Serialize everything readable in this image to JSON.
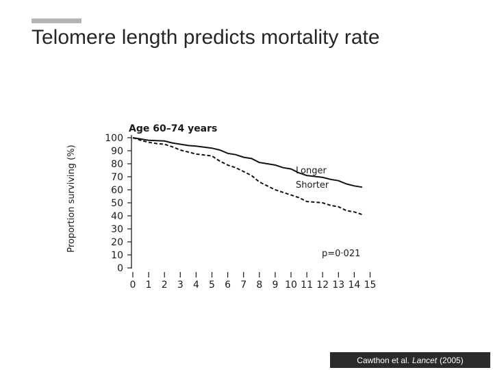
{
  "slide": {
    "title": "Telomere length predicts mortality rate",
    "citation": {
      "authors": "Cawthon et al.",
      "journal": "Lancet",
      "year": "(2005)"
    }
  },
  "colors": {
    "accent_bar": "#b3b3b3",
    "title_text": "#262626",
    "citation_bg": "#2b2b2b",
    "series": "#111111"
  },
  "chart_data": {
    "type": "line",
    "title": "Age 60–74 years",
    "xlabel": "",
    "ylabel": "Proportion surviving (%)",
    "xlim": [
      0,
      15
    ],
    "ylim": [
      0,
      100
    ],
    "x_ticks": [
      0,
      1,
      2,
      3,
      4,
      5,
      6,
      7,
      8,
      9,
      10,
      11,
      12,
      13,
      14,
      15
    ],
    "y_ticks": [
      0,
      10,
      20,
      30,
      40,
      50,
      60,
      70,
      80,
      90,
      100
    ],
    "grid": false,
    "annotation": "p=0·021",
    "series": [
      {
        "name": "Longer",
        "style": "solid",
        "points": [
          [
            0,
            100
          ],
          [
            0.5,
            99
          ],
          [
            1,
            98
          ],
          [
            2,
            97.5
          ],
          [
            2.5,
            96
          ],
          [
            3,
            95
          ],
          [
            3.5,
            94
          ],
          [
            4,
            93.5
          ],
          [
            5,
            92
          ],
          [
            5.5,
            90.5
          ],
          [
            6,
            88
          ],
          [
            6.5,
            87
          ],
          [
            7,
            85
          ],
          [
            7.5,
            84
          ],
          [
            8,
            81
          ],
          [
            8.5,
            80
          ],
          [
            9,
            79
          ],
          [
            9.5,
            77
          ],
          [
            10,
            76
          ],
          [
            10.5,
            73
          ],
          [
            11,
            71
          ],
          [
            12,
            69.5
          ],
          [
            12.5,
            68
          ],
          [
            13,
            67
          ],
          [
            13.5,
            64.5
          ],
          [
            14,
            63
          ],
          [
            14.5,
            62
          ]
        ]
      },
      {
        "name": "Shorter",
        "style": "dashed",
        "points": [
          [
            0,
            100
          ],
          [
            0.5,
            98
          ],
          [
            1,
            96.5
          ],
          [
            1.5,
            95.5
          ],
          [
            2,
            95
          ],
          [
            2.5,
            93
          ],
          [
            3,
            90.5
          ],
          [
            3.5,
            89
          ],
          [
            4,
            87.5
          ],
          [
            5,
            86
          ],
          [
            5.5,
            82
          ],
          [
            6,
            79
          ],
          [
            6.5,
            77
          ],
          [
            7,
            74
          ],
          [
            7.5,
            71
          ],
          [
            8,
            66
          ],
          [
            8.5,
            63
          ],
          [
            9,
            60
          ],
          [
            9.5,
            58
          ],
          [
            10,
            56
          ],
          [
            10.5,
            54
          ],
          [
            11,
            51
          ],
          [
            12,
            50
          ],
          [
            12.5,
            48
          ],
          [
            13,
            47
          ],
          [
            13.5,
            44
          ],
          [
            14,
            43
          ],
          [
            14.5,
            41
          ]
        ]
      }
    ]
  }
}
